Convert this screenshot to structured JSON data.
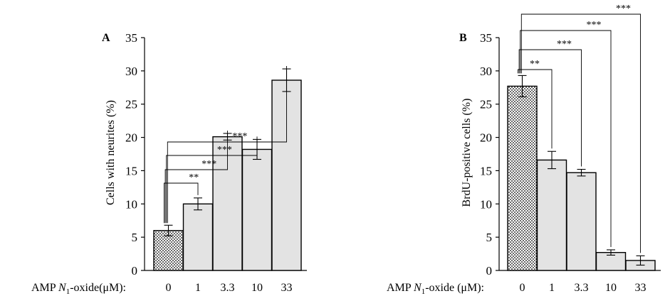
{
  "chart_data": [
    {
      "panel_label": "A",
      "type": "bar",
      "ylabel": "Cells with neurites (%)",
      "xlabel_prefix": "AMP ",
      "xlabel_var": "N",
      "xlabel_sub": "1",
      "xlabel_suffix": "-oxide(μM):",
      "categories": [
        "0",
        "1",
        "3.3",
        "10",
        "33"
      ],
      "values": [
        6.0,
        10.0,
        20.1,
        18.2,
        28.6
      ],
      "errors": [
        0.8,
        0.9,
        0.5,
        1.5,
        1.7
      ],
      "fills": [
        "dots",
        "gray",
        "gray",
        "gray",
        "gray"
      ],
      "ylim": [
        0,
        35
      ],
      "yticks": [
        "0",
        "5",
        "10",
        "15",
        "20",
        "25",
        "30",
        "35"
      ],
      "significance": [
        {
          "from": 0,
          "to": 1,
          "label": "**"
        },
        {
          "from": 0,
          "to": 2,
          "label": "***"
        },
        {
          "from": 0,
          "to": 3,
          "label": "***"
        },
        {
          "from": 0,
          "to": 4,
          "label": "***"
        }
      ]
    },
    {
      "panel_label": "B",
      "type": "bar",
      "ylabel": "BrdU-positive cells (%)",
      "xlabel_prefix": "AMP ",
      "xlabel_var": "N",
      "xlabel_sub": "1",
      "xlabel_suffix": "-oxide (μM):",
      "categories": [
        "0",
        "1",
        "3.3",
        "10",
        "33"
      ],
      "values": [
        27.7,
        16.6,
        14.7,
        2.7,
        1.5
      ],
      "errors": [
        1.6,
        1.3,
        0.5,
        0.4,
        0.7
      ],
      "fills": [
        "dots",
        "gray",
        "gray",
        "gray",
        "gray"
      ],
      "ylim": [
        0,
        35
      ],
      "yticks": [
        "0",
        "5",
        "10",
        "15",
        "20",
        "25",
        "30",
        "35"
      ],
      "significance": [
        {
          "from": 0,
          "to": 1,
          "label": "**"
        },
        {
          "from": 0,
          "to": 2,
          "label": "***"
        },
        {
          "from": 0,
          "to": 3,
          "label": "***"
        },
        {
          "from": 0,
          "to": 4,
          "label": "***"
        }
      ]
    }
  ]
}
